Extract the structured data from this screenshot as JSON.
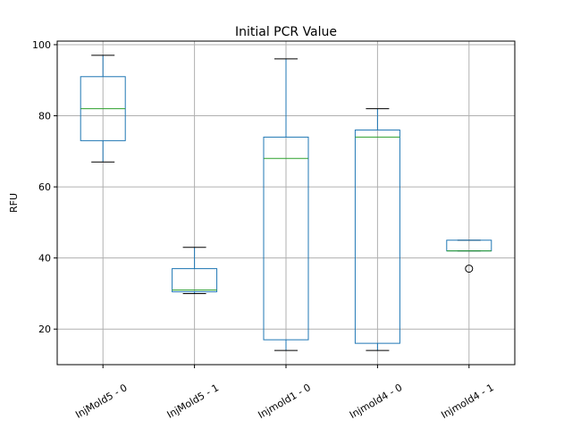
{
  "chart_data": {
    "type": "box",
    "title": "Initial PCR Value",
    "ylabel": "RFU",
    "ylim": [
      10,
      101
    ],
    "yticks": [
      20,
      40,
      60,
      80,
      100
    ],
    "grid": true,
    "categories": [
      "InjMold5 - 0",
      "InjMold5 - 1",
      "Injmold1 - 0",
      "Injmold4 - 0",
      "Injmold4 - 1"
    ],
    "boxes": [
      {
        "label": "InjMold5 - 0",
        "whisker_low": 67,
        "q1": 73,
        "median": 82,
        "q3": 91,
        "whisker_high": 97,
        "outliers": []
      },
      {
        "label": "InjMold5 - 1",
        "whisker_low": 30,
        "q1": 30.5,
        "median": 31,
        "q3": 37,
        "whisker_high": 43,
        "outliers": []
      },
      {
        "label": "Injmold1 - 0",
        "whisker_low": 14,
        "q1": 17,
        "median": 68,
        "q3": 74,
        "whisker_high": 96,
        "outliers": []
      },
      {
        "label": "Injmold4 - 0",
        "whisker_low": 14,
        "q1": 16,
        "median": 74,
        "q3": 76,
        "whisker_high": 82,
        "outliers": []
      },
      {
        "label": "Injmold4 - 1",
        "whisker_low": 42,
        "q1": 42,
        "median": 42,
        "q3": 45,
        "whisker_high": 45,
        "outliers": [
          37
        ]
      }
    ],
    "colors": {
      "box": "#1f77b4",
      "median": "#2ca02c",
      "grid": "#b0b0b0",
      "whisker": "#000000"
    }
  }
}
